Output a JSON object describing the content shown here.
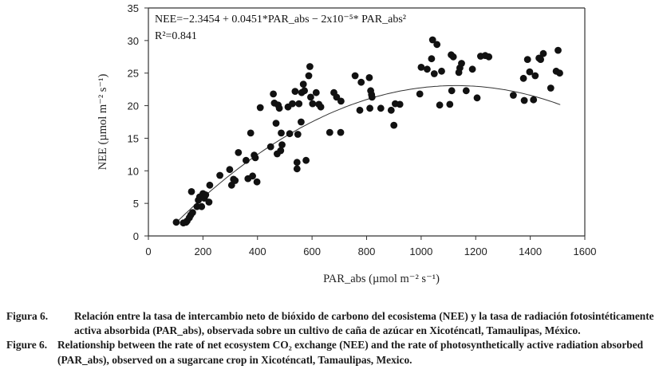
{
  "chart_data": {
    "type": "scatter",
    "xlabel": "PAR_abs (µmol m⁻² s⁻¹)",
    "ylabel": "NEE (µmol m⁻² s⁻¹)",
    "xlim": [
      0,
      1600
    ],
    "ylim": [
      0,
      35
    ],
    "x_ticks": [
      0,
      200,
      400,
      600,
      800,
      1000,
      1200,
      1400,
      1600
    ],
    "y_ticks": [
      0,
      5,
      10,
      15,
      20,
      25,
      30,
      35
    ],
    "grid": false,
    "annotations": [
      "NEE=−2.3454 + 0.0451*PAR_abs − 2x10⁻⁵* PAR_abs²",
      "R²=0.841"
    ],
    "fit": {
      "type": "quadratic",
      "a": -2.3454,
      "b": 0.0451,
      "c": -2e-05,
      "x_range": [
        100,
        1510
      ]
    },
    "points": [
      [
        102,
        2.1
      ],
      [
        128,
        2.0
      ],
      [
        138,
        2.1
      ],
      [
        142,
        2.3
      ],
      [
        150,
        2.8
      ],
      [
        155,
        3.2
      ],
      [
        158,
        6.8
      ],
      [
        162,
        3.6
      ],
      [
        178,
        4.5
      ],
      [
        183,
        5.5
      ],
      [
        188,
        6.0
      ],
      [
        195,
        4.5
      ],
      [
        200,
        6.5
      ],
      [
        205,
        5.8
      ],
      [
        210,
        6.3
      ],
      [
        222,
        5.2
      ],
      [
        225,
        7.8
      ],
      [
        262,
        9.3
      ],
      [
        298,
        10.2
      ],
      [
        305,
        7.8
      ],
      [
        312,
        8.7
      ],
      [
        318,
        8.5
      ],
      [
        330,
        12.8
      ],
      [
        358,
        11.6
      ],
      [
        365,
        8.8
      ],
      [
        375,
        15.8
      ],
      [
        382,
        9.2
      ],
      [
        388,
        12.4
      ],
      [
        392,
        12.0
      ],
      [
        398,
        8.3
      ],
      [
        410,
        19.7
      ],
      [
        448,
        13.7
      ],
      [
        458,
        21.8
      ],
      [
        462,
        20.4
      ],
      [
        468,
        17.3
      ],
      [
        472,
        12.6
      ],
      [
        476,
        20.1
      ],
      [
        480,
        19.6
      ],
      [
        485,
        13.1
      ],
      [
        487,
        15.8
      ],
      [
        490,
        14.0
      ],
      [
        512,
        19.8
      ],
      [
        518,
        15.7
      ],
      [
        528,
        20.3
      ],
      [
        538,
        22.2
      ],
      [
        545,
        11.3
      ],
      [
        545,
        10.3
      ],
      [
        548,
        15.6
      ],
      [
        552,
        20.3
      ],
      [
        560,
        17.5
      ],
      [
        562,
        22.0
      ],
      [
        568,
        23.3
      ],
      [
        572,
        22.3
      ],
      [
        578,
        11.6
      ],
      [
        588,
        24.6
      ],
      [
        592,
        26.0
      ],
      [
        595,
        21.3
      ],
      [
        602,
        20.3
      ],
      [
        615,
        22.0
      ],
      [
        625,
        20.2
      ],
      [
        632,
        19.8
      ],
      [
        665,
        15.9
      ],
      [
        680,
        22.0
      ],
      [
        690,
        21.3
      ],
      [
        705,
        15.9
      ],
      [
        706,
        20.7
      ],
      [
        758,
        24.6
      ],
      [
        775,
        19.3
      ],
      [
        780,
        23.6
      ],
      [
        810,
        24.3
      ],
      [
        812,
        19.6
      ],
      [
        815,
        22.3
      ],
      [
        818,
        21.7
      ],
      [
        820,
        21.3
      ],
      [
        852,
        19.6
      ],
      [
        890,
        19.3
      ],
      [
        900,
        17.0
      ],
      [
        905,
        20.3
      ],
      [
        922,
        20.2
      ],
      [
        995,
        21.8
      ],
      [
        1000,
        25.9
      ],
      [
        1022,
        25.6
      ],
      [
        1038,
        27.2
      ],
      [
        1042,
        30.1
      ],
      [
        1048,
        24.9
      ],
      [
        1058,
        29.4
      ],
      [
        1068,
        20.1
      ],
      [
        1075,
        25.3
      ],
      [
        1105,
        20.2
      ],
      [
        1110,
        27.8
      ],
      [
        1112,
        22.3
      ],
      [
        1118,
        27.5
      ],
      [
        1138,
        25.1
      ],
      [
        1142,
        25.8
      ],
      [
        1148,
        26.5
      ],
      [
        1165,
        22.3
      ],
      [
        1188,
        25.6
      ],
      [
        1205,
        21.2
      ],
      [
        1218,
        27.6
      ],
      [
        1235,
        27.7
      ],
      [
        1248,
        27.5
      ],
      [
        1338,
        21.6
      ],
      [
        1375,
        24.2
      ],
      [
        1378,
        20.8
      ],
      [
        1390,
        27.1
      ],
      [
        1398,
        25.2
      ],
      [
        1412,
        20.9
      ],
      [
        1418,
        24.6
      ],
      [
        1432,
        27.3
      ],
      [
        1438,
        27.1
      ],
      [
        1448,
        28.0
      ],
      [
        1475,
        22.7
      ],
      [
        1495,
        25.3
      ],
      [
        1502,
        28.5
      ],
      [
        1508,
        25.0
      ]
    ]
  },
  "captions": {
    "es_label": "Figura 6.",
    "es_text": "Relación entre la tasa de intercambio neto de bióxido de carbono del ecosistema (NEE) y la tasa de radiación fotosintéticamente activa absorbida (PAR_abs), observada sobre un cultivo de caña de azúcar en Xicoténcatl, Tamaulipas, México.",
    "en_label": "Figure 6.",
    "en_text": "Relationship between the rate of net ecosystem CO₂ exchange (NEE) and the rate of photosynthetically active radiation absorbed (PAR_abs), observed on a sugarcane crop in Xicoténcatl, Tamaulipas, Mexico."
  }
}
